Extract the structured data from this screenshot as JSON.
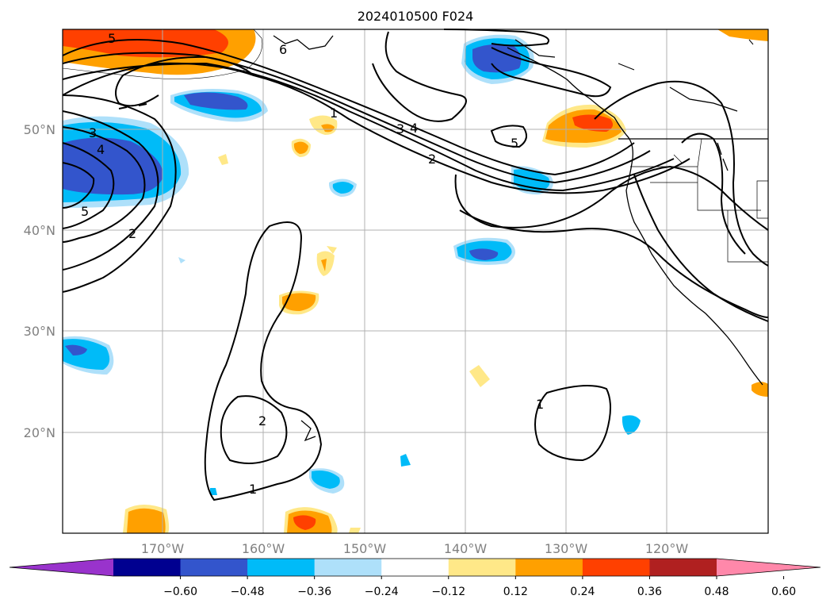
{
  "title": "2024010500 F024",
  "lat_labels": [
    "50°N",
    "40°N",
    "30°N",
    "20°N"
  ],
  "lon_labels": [
    "170°W",
    "160°W",
    "150°W",
    "140°W",
    "130°W",
    "120°W"
  ],
  "contour_labels": [
    "5",
    "6",
    "3",
    "4",
    "5",
    "2",
    "1",
    "3",
    "4",
    "2",
    "5",
    "2",
    "1",
    "1"
  ],
  "colorbar": {
    "ticks": [
      "−0.60",
      "−0.48",
      "−0.36",
      "−0.24",
      "−0.12",
      "0.12",
      "0.24",
      "0.36",
      "0.48",
      "0.60"
    ],
    "colors": [
      "#9933cc",
      "#000090",
      "#3355cc",
      "#00bbf8",
      "#aee0fa",
      "#ffffff",
      "#ffe888",
      "#ffa000",
      "#ff4000",
      "#b02020",
      "#ff88aa"
    ]
  },
  "shading_colors": {
    "neg_strong": "#3355cc",
    "neg_mid": "#00bbf8",
    "neg_weak": "#aee0fa",
    "pos_weak": "#ffe888",
    "pos_mid": "#ffa000",
    "pos_strong": "#ff4000"
  }
}
